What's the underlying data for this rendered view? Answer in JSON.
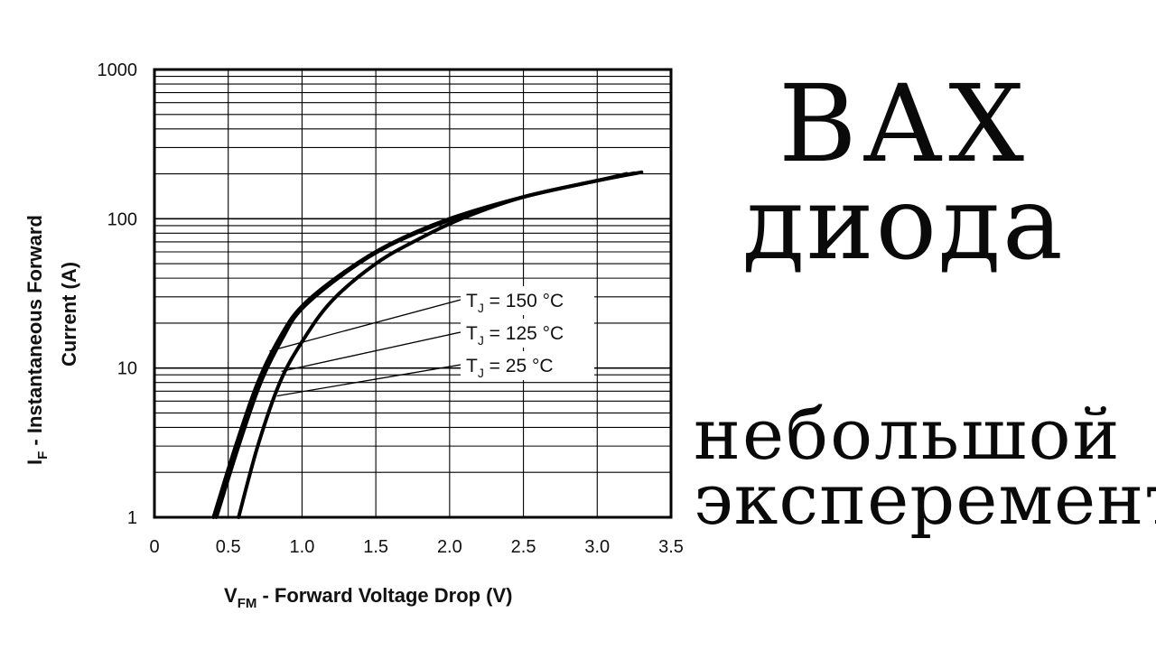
{
  "headline": {
    "line1": "ВАХ",
    "line2": "диода",
    "line3": "небольшой",
    "line4": "эксперемент"
  },
  "chart_data": {
    "type": "line",
    "log_y": true,
    "xlim": [
      0,
      3.5
    ],
    "ylim": [
      1,
      1000
    ],
    "x_ticks": [
      "0",
      "0.5",
      "1.0",
      "1.5",
      "2.0",
      "2.5",
      "3.0",
      "3.5"
    ],
    "y_ticks": [
      "1",
      "10",
      "100",
      "1000"
    ],
    "xlabel_main": "V",
    "xlabel_sub": "FM",
    "xlabel_rest": " - Forward Voltage Drop (V)",
    "ylabel_main": "I",
    "ylabel_sub": "F",
    "ylabel_rest": " - Instantaneous Forward",
    "ylabel_line2": "Current (A)",
    "grid": true,
    "series": [
      {
        "name": "T_J = 150 °C",
        "label_main": "T",
        "label_sub": "J",
        "label_rest": " = 150 °C",
        "x": [
          0.4,
          0.55,
          0.7,
          0.85,
          1.0,
          1.3,
          1.6,
          2.0,
          2.5,
          3.0,
          3.2
        ],
        "y": [
          1,
          3,
          8,
          16,
          26,
          45,
          68,
          100,
          140,
          180,
          200
        ]
      },
      {
        "name": "T_J = 125 °C",
        "label_main": "T",
        "label_sub": "J",
        "label_rest": " = 125 °C",
        "x": [
          0.42,
          0.57,
          0.72,
          0.87,
          1.0,
          1.3,
          1.6,
          2.0,
          2.5,
          3.0,
          3.25
        ],
        "y": [
          1,
          3,
          8,
          16,
          25,
          44,
          67,
          98,
          140,
          180,
          202
        ]
      },
      {
        "name": "T_J = 25 °C",
        "label_main": "T",
        "label_sub": "J",
        "label_rest": " = 25 °C",
        "x": [
          0.57,
          0.7,
          0.85,
          1.0,
          1.2,
          1.5,
          1.8,
          2.1,
          2.5,
          3.0,
          3.3
        ],
        "y": [
          1,
          3,
          8,
          15,
          28,
          50,
          74,
          102,
          140,
          180,
          205
        ]
      }
    ]
  }
}
